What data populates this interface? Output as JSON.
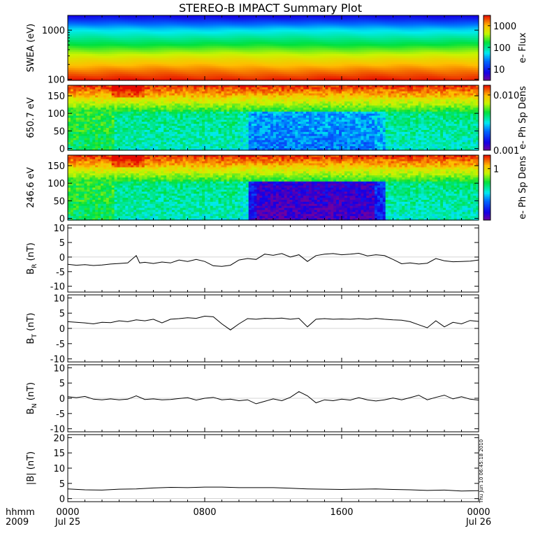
{
  "title": "STEREO-B IMPACT Summary Plot",
  "footer": {
    "hhmm": "hhmm",
    "year": "2009",
    "timestamp": "Thu Jun 10 06:45:18 2010"
  },
  "time_axis": {
    "range_hours": [
      0,
      24
    ],
    "ticks": [
      {
        "hour": 0,
        "time": "0000",
        "date": "Jul 25"
      },
      {
        "hour": 8,
        "time": "0800",
        "date": ""
      },
      {
        "hour": 16,
        "time": "1600",
        "date": ""
      },
      {
        "hour": 24,
        "time": "0000",
        "date": "Jul 26"
      }
    ]
  },
  "chart_data": [
    {
      "type": "heatmap",
      "ylabel": "SWEA (eV)",
      "ylim": [
        95,
        2000
      ],
      "yscale": "log",
      "yticks": [
        {
          "v": 100,
          "label": "100"
        },
        {
          "v": 1000,
          "label": "1000"
        }
      ],
      "colorbar": {
        "label": "e- Flux",
        "scale": "log",
        "range": [
          3,
          3000
        ],
        "ticks": [
          {
            "v": 10,
            "label": "10"
          },
          {
            "v": 100,
            "label": "100"
          },
          {
            "v": 1000,
            "label": "1000"
          }
        ]
      }
    },
    {
      "type": "heatmap",
      "ylabel": "650.7 eV",
      "ylim": [
        -5,
        180
      ],
      "yticks": [
        {
          "v": 0,
          "label": "0"
        },
        {
          "v": 50,
          "label": "50"
        },
        {
          "v": 100,
          "label": "100"
        },
        {
          "v": 150,
          "label": "150"
        }
      ],
      "colorbar": {
        "label": "e- Ph Sp Dens",
        "scale": "log",
        "range": [
          0.001,
          0.015
        ],
        "ticks": [
          {
            "v": 0.001,
            "label": "0.001"
          },
          {
            "v": 0.01,
            "label": "0.010"
          }
        ]
      }
    },
    {
      "type": "heatmap",
      "ylabel": "246.6 eV",
      "ylim": [
        -5,
        180
      ],
      "yticks": [
        {
          "v": 0,
          "label": "0"
        },
        {
          "v": 50,
          "label": "50"
        },
        {
          "v": 100,
          "label": "100"
        },
        {
          "v": 150,
          "label": "150"
        }
      ],
      "colorbar": {
        "label": "e- Ph Sp Dens",
        "scale": "log",
        "range": [
          0.05,
          2.2
        ],
        "ticks": [
          {
            "v": 1,
            "label": "1"
          }
        ]
      }
    },
    {
      "type": "line",
      "ylabel": "B",
      "ylabel_sub": "R",
      "ylabel_unit": " (nT)",
      "ylim": [
        -12,
        11
      ],
      "yticks": [
        {
          "v": -10,
          "label": "-10"
        },
        {
          "v": -5,
          "label": "-5"
        },
        {
          "v": 0,
          "label": "0"
        },
        {
          "v": 5,
          "label": "5"
        },
        {
          "v": 10,
          "label": "10"
        }
      ],
      "x": [
        0,
        0.5,
        1,
        1.5,
        2,
        2.5,
        3,
        3.5,
        4,
        4.2,
        4.5,
        5,
        5.5,
        6,
        6.5,
        7,
        7.5,
        8,
        8.5,
        9,
        9.5,
        10,
        10.5,
        11,
        11.5,
        12,
        12.5,
        13,
        13.5,
        14,
        14.5,
        15,
        15.5,
        16,
        16.5,
        17,
        17.5,
        18,
        18.5,
        19,
        19.5,
        20,
        20.5,
        21,
        21.5,
        22,
        22.5,
        23,
        23.5,
        24
      ],
      "y": [
        -2.5,
        -2.8,
        -2.6,
        -2.9,
        -2.7,
        -2.4,
        -2.2,
        -2.0,
        0.5,
        -2.0,
        -1.8,
        -2.2,
        -1.7,
        -2.0,
        -1.0,
        -1.5,
        -0.8,
        -1.5,
        -3.0,
        -3.2,
        -2.8,
        -1.0,
        -0.5,
        -0.8,
        1.0,
        0.6,
        1.2,
        0.0,
        0.8,
        -1.5,
        0.5,
        1.0,
        1.2,
        0.8,
        1.0,
        1.3,
        0.4,
        0.8,
        0.5,
        -0.8,
        -2.3,
        -2.0,
        -2.4,
        -2.1,
        -0.5,
        -1.3,
        -1.6,
        -1.5,
        -1.4,
        -1.0
      ]
    },
    {
      "type": "line",
      "ylabel": "B",
      "ylabel_sub": "T",
      "ylabel_unit": " (nT)",
      "ylim": [
        -11,
        11
      ],
      "yticks": [
        {
          "v": -10,
          "label": "-10"
        },
        {
          "v": -5,
          "label": "-5"
        },
        {
          "v": 0,
          "label": "0"
        },
        {
          "v": 5,
          "label": "5"
        },
        {
          "v": 10,
          "label": "10"
        }
      ],
      "x": [
        0,
        0.5,
        1,
        1.5,
        2,
        2.5,
        3,
        3.5,
        4,
        4.5,
        5,
        5.5,
        6,
        6.5,
        7,
        7.5,
        8,
        8.5,
        9,
        9.5,
        10,
        10.5,
        11,
        11.5,
        12,
        12.5,
        13,
        13.5,
        14,
        14.5,
        15,
        15.5,
        16,
        16.5,
        17,
        17.5,
        18,
        18.5,
        19,
        19.5,
        20,
        20.5,
        21,
        21.5,
        22,
        22.5,
        23,
        23.5,
        24
      ],
      "y": [
        2.2,
        2.0,
        1.8,
        1.5,
        2.0,
        1.9,
        2.5,
        2.2,
        2.8,
        2.5,
        3.0,
        1.8,
        3.0,
        3.2,
        3.5,
        3.3,
        4.0,
        3.8,
        1.5,
        -0.5,
        1.5,
        3.2,
        3.0,
        3.3,
        3.2,
        3.4,
        3.0,
        3.3,
        0.5,
        3.0,
        3.2,
        3.0,
        3.1,
        3.0,
        3.2,
        3.0,
        3.3,
        3.0,
        2.8,
        2.7,
        2.2,
        1.2,
        0.2,
        2.5,
        0.5,
        2.0,
        1.5,
        2.6,
        2.3
      ]
    },
    {
      "type": "line",
      "ylabel": "B",
      "ylabel_sub": "N",
      "ylabel_unit": " (nT)",
      "ylim": [
        -11,
        11
      ],
      "yticks": [
        {
          "v": -10,
          "label": "-10"
        },
        {
          "v": -5,
          "label": "-5"
        },
        {
          "v": 0,
          "label": "0"
        },
        {
          "v": 5,
          "label": "5"
        },
        {
          "v": 10,
          "label": "10"
        }
      ],
      "x": [
        0,
        0.5,
        1,
        1.5,
        2,
        2.5,
        3,
        3.5,
        4,
        4.5,
        5,
        5.5,
        6,
        6.5,
        7,
        7.5,
        8,
        8.5,
        9,
        9.5,
        10,
        10.5,
        11,
        11.5,
        12,
        12.5,
        13,
        13.5,
        14,
        14.5,
        15,
        15.5,
        16,
        16.5,
        17,
        17.5,
        18,
        18.5,
        19,
        19.5,
        20,
        20.5,
        21,
        21.5,
        22,
        22.5,
        23,
        23.5,
        24
      ],
      "y": [
        0.5,
        0.2,
        0.6,
        -0.3,
        -0.5,
        -0.2,
        -0.5,
        -0.3,
        0.8,
        -0.4,
        -0.2,
        -0.5,
        -0.4,
        -0.1,
        0.2,
        -0.6,
        0.0,
        0.3,
        -0.5,
        -0.3,
        -0.8,
        -0.5,
        -1.8,
        -1.0,
        -0.2,
        -0.8,
        0.3,
        2.2,
        0.8,
        -1.5,
        -0.5,
        -0.8,
        -0.3,
        -0.6,
        0.2,
        -0.5,
        -0.9,
        -0.5,
        0.1,
        -0.5,
        0.2,
        1.0,
        -0.5,
        0.3,
        1.0,
        -0.2,
        0.5,
        -0.3,
        -0.6
      ]
    },
    {
      "type": "line",
      "ylabel": "|B| (nT)",
      "ylim": [
        -1,
        21
      ],
      "yticks": [
        {
          "v": 0,
          "label": "0"
        },
        {
          "v": 5,
          "label": "5"
        },
        {
          "v": 10,
          "label": "10"
        },
        {
          "v": 15,
          "label": "15"
        },
        {
          "v": 20,
          "label": "20"
        }
      ],
      "x": [
        0,
        1,
        2,
        3,
        4,
        5,
        6,
        7,
        8,
        9,
        10,
        11,
        12,
        13,
        14,
        15,
        16,
        17,
        18,
        19,
        20,
        21,
        22,
        23,
        24
      ],
      "y": [
        3.2,
        2.9,
        2.8,
        3.1,
        3.2,
        3.5,
        3.7,
        3.6,
        3.8,
        3.8,
        3.6,
        3.6,
        3.6,
        3.4,
        3.2,
        3.1,
        3.0,
        3.1,
        3.2,
        3.0,
        2.9,
        2.7,
        2.8,
        2.5,
        2.6
      ]
    }
  ]
}
